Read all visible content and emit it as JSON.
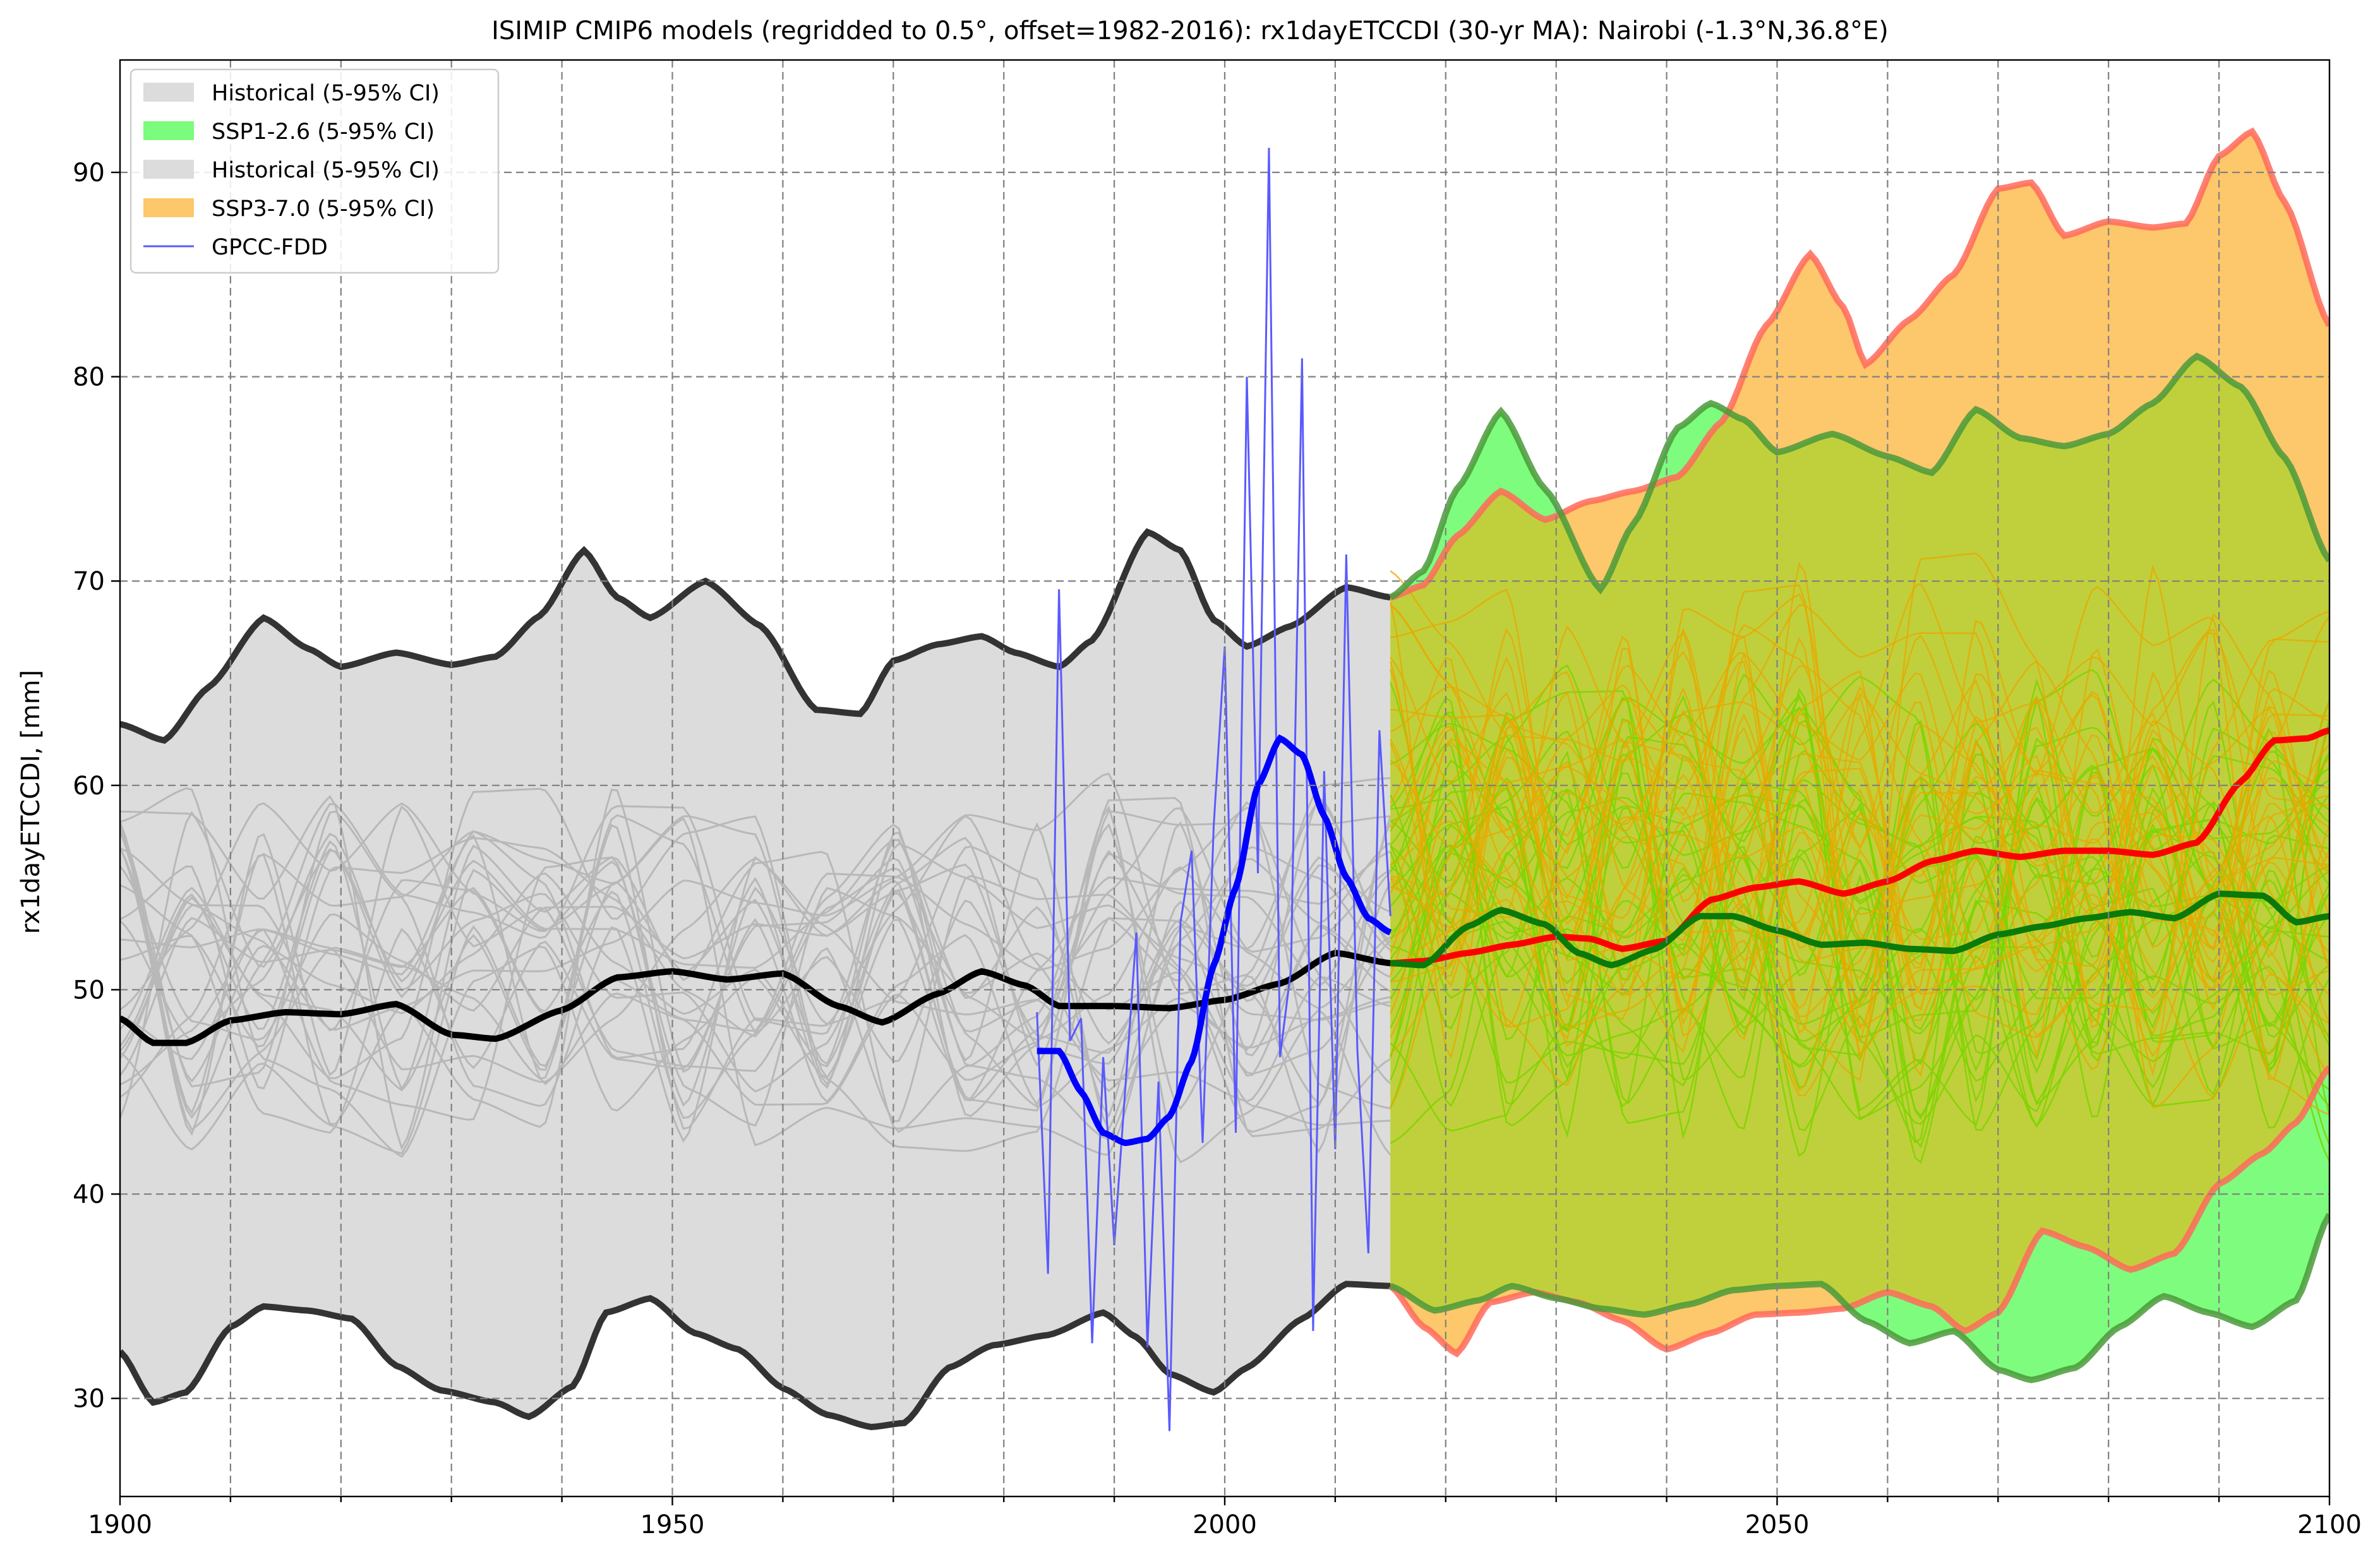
{
  "chart_data": {
    "type": "line",
    "title": "ISIMIP CMIP6 models (regridded to 0.5°, offset=1982-2016): rx1dayETCCDI (30-yr MA): Nairobi (-1.3°N,36.8°E)",
    "xlabel": "",
    "ylabel": "rx1dayETCCDI, [mm]",
    "xlim": [
      1900,
      2100
    ],
    "ylim": [
      25.2,
      95.5
    ],
    "x_ticks": [
      1900,
      1950,
      2000,
      2050,
      2100
    ],
    "x_minor_grid": [
      1910,
      1920,
      1930,
      1940,
      1960,
      1970,
      1980,
      1990,
      2010,
      2020,
      2030,
      2040,
      2060,
      2070,
      2080,
      2090
    ],
    "y_ticks": [
      30,
      40,
      50,
      60,
      70,
      80,
      90
    ],
    "grid": true,
    "legend_position": "top-left",
    "legend": [
      {
        "label": "Historical (5-95% CI)",
        "color": "#dcdcdc",
        "kind": "patch"
      },
      {
        "label": "SSP1-2.6 (5-95% CI)",
        "color": "#7cfc7c",
        "kind": "patch"
      },
      {
        "label": "Historical (5-95% CI)",
        "color": "#dcdcdc",
        "kind": "patch"
      },
      {
        "label": "SSP3-7.0 (5-95% CI)",
        "color": "#fdc76b",
        "kind": "patch"
      },
      {
        "label": "GPCC-FDD",
        "color": "#5a5aff",
        "kind": "line"
      }
    ],
    "colors": {
      "historical_band": "#dcdcdc",
      "historical_members": "#b8b8b8",
      "historical_bounds": "#333333",
      "historical_median": "#000000",
      "ssp126_band": "#7efc7e",
      "ssp126_bounds": "#4a9a3a",
      "ssp126_median": "#0a7a0a",
      "ssp126_members": "#7ed400",
      "ssp370_band": "#fdc76b",
      "ssp370_bounds": "#ff6a5a",
      "ssp370_median": "#ff0000",
      "ssp370_members": "#e8a800",
      "overlap_band": "#c0d03c",
      "gpcc_raw": "#5a5aff",
      "gpcc_smooth": "#0000ff"
    },
    "series": [
      {
        "key": "hist_upper",
        "x": [
          1900,
          1904,
          1908,
          1913,
          1917,
          1920,
          1925,
          1930,
          1934,
          1938,
          1942,
          1945,
          1948,
          1953,
          1958,
          1963,
          1967,
          1970,
          1974,
          1978,
          1981,
          1985,
          1988,
          1993,
          1996,
          1999,
          2002,
          2006,
          2011,
          2015
        ],
        "values": [
          63,
          62.2,
          64.8,
          68.2,
          66.7,
          65.8,
          66.5,
          65.9,
          66.3,
          68.3,
          71.5,
          69.2,
          68.2,
          70,
          67.8,
          63.7,
          63.5,
          66.1,
          66.9,
          67.3,
          66.5,
          65.8,
          67.1,
          72.4,
          71.5,
          68.1,
          66.8,
          67.8,
          69.7,
          69.2
        ]
      },
      {
        "key": "hist_lower",
        "x": [
          1900,
          1903,
          1906,
          1910,
          1913,
          1917,
          1921,
          1925,
          1929,
          1934,
          1937,
          1941,
          1944,
          1948,
          1952,
          1956,
          1960,
          1964,
          1968,
          1971,
          1975,
          1979,
          1984,
          1989,
          1992,
          1995,
          1999,
          2002,
          2007,
          2011,
          2015
        ],
        "values": [
          32.3,
          29.8,
          30.3,
          33.5,
          34.5,
          34.3,
          33.9,
          31.6,
          30.4,
          29.8,
          29.1,
          30.6,
          34.2,
          34.9,
          33.2,
          32.4,
          30.5,
          29.2,
          28.6,
          28.8,
          31.5,
          32.6,
          33.1,
          34.2,
          33,
          31.2,
          30.3,
          31.5,
          33.9,
          35.6,
          35.5
        ]
      },
      {
        "key": "hist_median",
        "x": [
          1900,
          1903,
          1906,
          1910,
          1915,
          1920,
          1925,
          1930,
          1934,
          1940,
          1945,
          1950,
          1955,
          1960,
          1965,
          1969,
          1974,
          1978,
          1982,
          1985,
          1990,
          1995,
          2000,
          2005,
          2010,
          2015
        ],
        "values": [
          48.6,
          47.4,
          47.4,
          48.5,
          48.9,
          48.8,
          49.3,
          47.8,
          47.6,
          49,
          50.6,
          50.9,
          50.5,
          50.8,
          49.2,
          48.4,
          49.8,
          50.9,
          50.2,
          49.2,
          49.2,
          49.1,
          49.5,
          50.3,
          51.8,
          51.3
        ]
      },
      {
        "key": "ssp126_upper",
        "x": [
          2015,
          2018,
          2021,
          2025,
          2029,
          2034,
          2037,
          2041,
          2044,
          2047,
          2050,
          2055,
          2060,
          2064,
          2068,
          2072,
          2076,
          2080,
          2084,
          2088,
          2092,
          2096,
          2100
        ],
        "values": [
          69.2,
          70.5,
          74.5,
          78.3,
          74.5,
          69.6,
          72.8,
          77.5,
          78.7,
          77.9,
          76.3,
          77.2,
          76.1,
          75.3,
          78.4,
          77,
          76.6,
          77.2,
          78.7,
          81,
          79.5,
          76,
          71
        ]
      },
      {
        "key": "ssp126_lower",
        "x": [
          2015,
          2019,
          2023,
          2026,
          2030,
          2034,
          2038,
          2042,
          2046,
          2050,
          2054,
          2058,
          2062,
          2066,
          2070,
          2073,
          2077,
          2081,
          2085,
          2089,
          2093,
          2097,
          2100
        ],
        "values": [
          35.5,
          34.3,
          34.8,
          35.5,
          34.9,
          34.4,
          34.1,
          34.6,
          35.3,
          35.5,
          35.6,
          33.8,
          32.7,
          33.3,
          31.4,
          30.9,
          31.5,
          33.5,
          35,
          34.2,
          33.5,
          34.8,
          39
        ]
      },
      {
        "key": "ssp126_median",
        "x": [
          2015,
          2018,
          2022,
          2025,
          2029,
          2032,
          2035,
          2039,
          2043,
          2046,
          2050,
          2054,
          2058,
          2062,
          2066,
          2070,
          2074,
          2078,
          2082,
          2086,
          2090,
          2094,
          2097,
          2100
        ],
        "values": [
          51.3,
          51.2,
          53.1,
          53.9,
          53.2,
          51.8,
          51.2,
          52,
          53.6,
          53.6,
          52.9,
          52.2,
          52.3,
          52,
          51.9,
          52.7,
          53.1,
          53.5,
          53.8,
          53.5,
          54.7,
          54.6,
          53.3,
          53.6
        ]
      },
      {
        "key": "ssp370_upper",
        "x": [
          2015,
          2018,
          2021,
          2025,
          2029,
          2033,
          2037,
          2041,
          2045,
          2049,
          2053,
          2056,
          2058,
          2062,
          2066,
          2070,
          2073,
          2076,
          2080,
          2084,
          2087,
          2090,
          2093,
          2096,
          2100
        ],
        "values": [
          69.2,
          69.8,
          72.2,
          74.4,
          73,
          73.9,
          74.4,
          75.1,
          77.8,
          82.5,
          86,
          83.4,
          80.6,
          82.8,
          85,
          89.2,
          89.5,
          86.9,
          87.6,
          87.3,
          87.5,
          90.8,
          92,
          88.5,
          82.5
        ]
      },
      {
        "key": "ssp370_lower",
        "x": [
          2015,
          2018,
          2021,
          2024,
          2028,
          2032,
          2036,
          2040,
          2044,
          2048,
          2052,
          2056,
          2060,
          2064,
          2067,
          2070,
          2074,
          2078,
          2082,
          2086,
          2090,
          2094,
          2097,
          2100
        ],
        "values": [
          35.5,
          33.5,
          32.2,
          34.7,
          35.2,
          34.7,
          33.8,
          32.4,
          33.2,
          34.1,
          34.2,
          34.4,
          35.2,
          34.5,
          33.3,
          34.2,
          38.2,
          37.4,
          36.3,
          37.1,
          40.5,
          42,
          43.5,
          46.2
        ]
      },
      {
        "key": "ssp370_median",
        "x": [
          2015,
          2018,
          2022,
          2026,
          2030,
          2033,
          2036,
          2040,
          2044,
          2048,
          2052,
          2056,
          2060,
          2064,
          2068,
          2072,
          2076,
          2080,
          2084,
          2088,
          2092,
          2095,
          2098,
          2100
        ],
        "values": [
          51.3,
          51.4,
          51.8,
          52.2,
          52.6,
          52.5,
          52,
          52.4,
          54.4,
          55,
          55.3,
          54.7,
          55.3,
          56.3,
          56.8,
          56.5,
          56.8,
          56.8,
          56.6,
          57.2,
          60.2,
          62.2,
          62.3,
          62.7
        ]
      },
      {
        "key": "gpcc_smooth",
        "x": [
          1983,
          1985,
          1987,
          1989,
          1991,
          1993,
          1995,
          1997,
          1999,
          2001,
          2003,
          2005,
          2007,
          2009,
          2011,
          2013,
          2015
        ],
        "values": [
          47,
          47,
          45,
          43,
          42.5,
          42.7,
          43.8,
          46.5,
          51.2,
          55,
          60,
          62.3,
          61.5,
          58.5,
          55.5,
          53.5,
          52.8
        ]
      },
      {
        "key": "gpcc_raw",
        "x": [
          1983,
          1984,
          1985,
          1986,
          1987,
          1988,
          1989,
          1990,
          1991,
          1992,
          1993,
          1994,
          1995,
          1996,
          1997,
          1998,
          1999,
          2000,
          2001,
          2002,
          2003,
          2004,
          2005,
          2006,
          2007,
          2008,
          2009,
          2010,
          2011,
          2012,
          2013,
          2014,
          2015
        ],
        "values": [
          48.9,
          36.1,
          69.6,
          47.5,
          48.6,
          32.7,
          46.7,
          37.5,
          45.2,
          52.8,
          32.5,
          45.5,
          28.4,
          53.3,
          56.8,
          42.5,
          58,
          66.8,
          43,
          80,
          55.7,
          91.2,
          46.7,
          51,
          80.9,
          33.3,
          60.7,
          42.2,
          71.3,
          47.1,
          37.1,
          62.7,
          53.6
        ]
      }
    ]
  }
}
